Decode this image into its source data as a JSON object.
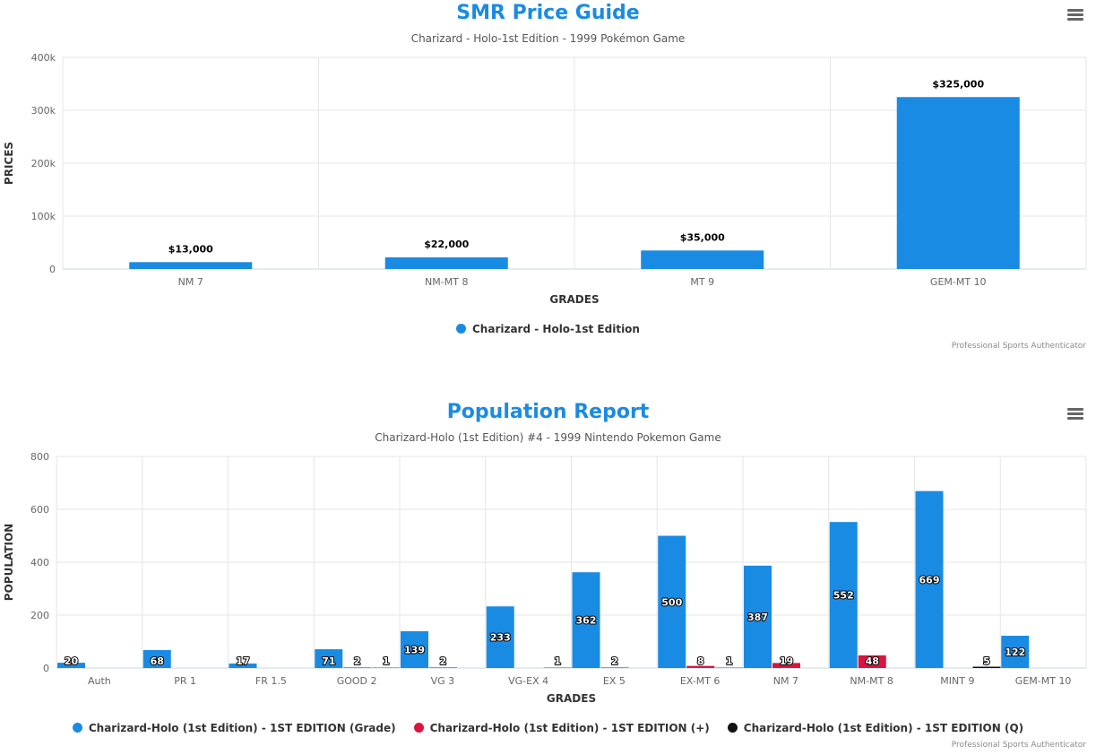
{
  "chart_data": [
    {
      "type": "bar",
      "title": "SMR Price Guide",
      "subtitle": "Charizard - Holo-1st Edition - 1999 Pokémon Game",
      "xlabel": "GRADES",
      "ylabel": "PRICES",
      "categories": [
        "NM 7",
        "NM-MT 8",
        "MT 9",
        "GEM-MT 10"
      ],
      "ylim": [
        0,
        400000
      ],
      "yticks": [
        "0",
        "100k",
        "200k",
        "300k",
        "400k"
      ],
      "ytick_values": [
        0,
        100000,
        200000,
        300000,
        400000
      ],
      "grid": true,
      "legend_position": "bottom-center",
      "series": [
        {
          "name": "Charizard - Holo-1st Edition",
          "color": "#1a8be3",
          "values": [
            13000,
            22000,
            35000,
            325000
          ],
          "labels": [
            "$13,000",
            "$22,000",
            "$35,000",
            "$325,000"
          ]
        }
      ],
      "credits": "Professional Sports Authenticator"
    },
    {
      "type": "bar",
      "title": "Population Report",
      "subtitle": "Charizard-Holo (1st Edition) #4 - 1999 Nintendo Pokemon Game",
      "xlabel": "GRADES",
      "ylabel": "POPULATION",
      "categories": [
        "Auth",
        "PR 1",
        "FR 1.5",
        "GOOD 2",
        "VG 3",
        "VG-EX 4",
        "EX 5",
        "EX-MT 6",
        "NM 7",
        "NM-MT 8",
        "MINT 9",
        "GEM-MT 10"
      ],
      "ylim": [
        0,
        800
      ],
      "yticks": [
        "0",
        "200",
        "400",
        "600",
        "800"
      ],
      "ytick_values": [
        0,
        200,
        400,
        600,
        800
      ],
      "grid": true,
      "legend_position": "bottom-center",
      "series": [
        {
          "name": "Charizard-Holo (1st Edition) - 1ST EDITION (Grade)",
          "color": "#1a8be3",
          "values": [
            20,
            68,
            17,
            71,
            139,
            233,
            362,
            500,
            387,
            552,
            669,
            122
          ]
        },
        {
          "name": "Charizard-Holo (1st Edition) - 1ST EDITION (+)",
          "color": "#d9153f",
          "values": [
            null,
            null,
            null,
            2,
            2,
            null,
            2,
            8,
            19,
            48,
            null,
            null
          ]
        },
        {
          "name": "Charizard-Holo (1st Edition) - 1ST EDITION (Q)",
          "color": "#111111",
          "values": [
            null,
            null,
            null,
            1,
            null,
            1,
            null,
            1,
            null,
            null,
            5,
            null
          ]
        }
      ],
      "credits": "Professional Sports Authenticator"
    }
  ],
  "ui": {
    "menu_icon": "hamburger-menu-icon"
  }
}
